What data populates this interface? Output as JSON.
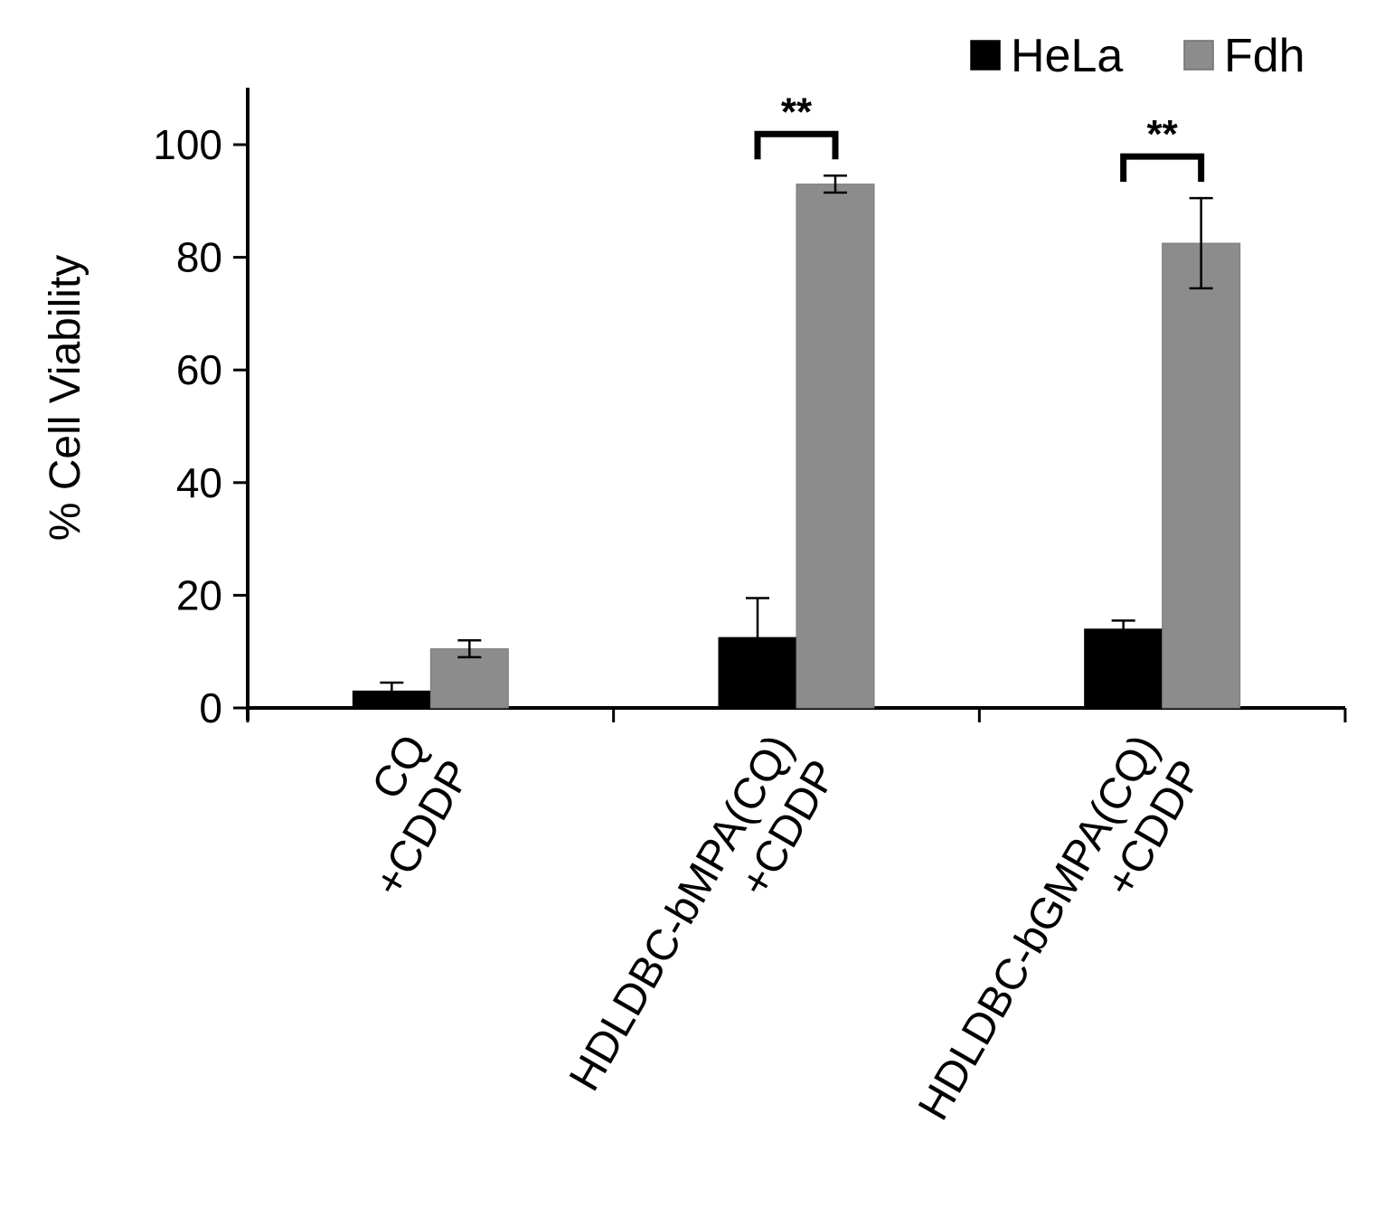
{
  "chart_data": {
    "type": "bar",
    "title": "",
    "xlabel": "",
    "ylabel": "% Cell Viability",
    "ylim": [
      0,
      100
    ],
    "yticks": [
      0,
      20,
      40,
      60,
      80,
      100
    ],
    "grid": false,
    "legend_position": "top-right",
    "categories": [
      [
        "CQ",
        "+CDDP"
      ],
      [
        "HDLDBC-bMPA(CQ)",
        "+CDDP"
      ],
      [
        "HDLDBC-bGMPA(CQ)",
        "+CDDP"
      ]
    ],
    "series": [
      {
        "name": "HeLa",
        "color": "#000000",
        "values": [
          3,
          12.5,
          14
        ],
        "errors": [
          1.5,
          7,
          1.5
        ]
      },
      {
        "name": "Fdh",
        "color": "#8c8c8c",
        "values": [
          10.5,
          93,
          82.5
        ],
        "errors": [
          1.5,
          1.5,
          8
        ]
      }
    ],
    "annotations": [
      {
        "category": 1,
        "text": "**"
      },
      {
        "category": 2,
        "text": "**"
      }
    ]
  }
}
